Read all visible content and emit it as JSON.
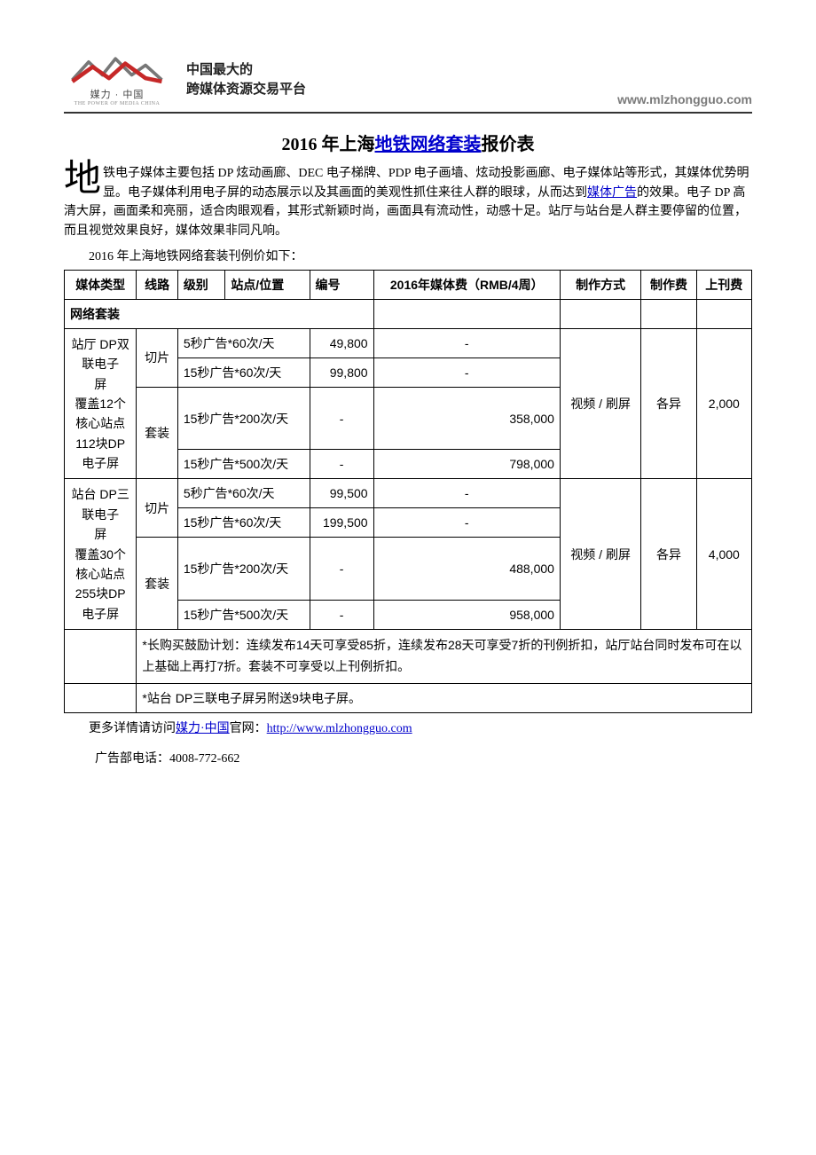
{
  "header": {
    "logo_name": "媒力 · 中国",
    "logo_sub": "THE POWER OF MEDIA  CHINA",
    "tagline_line1": "中国最大的",
    "tagline_line2": "跨媒体资源交易平台",
    "site_url": "www.mlzhongguo.com",
    "logo_colors": {
      "red": "#c62828",
      "gray": "#777777"
    }
  },
  "title": {
    "pre": "2016 年上海",
    "link": "地铁网络套装",
    "post": "报价表"
  },
  "intro": {
    "dropcap": "地",
    "body1": "铁电子媒体主要包括 DP 炫动画廊、DEC 电子梯牌、PDP 电子画墙、炫动投影画廊、电子媒体站等形式，其媒体优势明显。电子媒体利用电子屏的动态展示以及其画面的美观性抓住来往人群的眼球，从而达到",
    "ilink": "媒体广告",
    "body2": "的效果。电子 DP 高清大屏，画面柔和亮丽，适合肉眼观看，其形式新颖时尚，画面具有流动性，动感十足。站厅与站台是人群主要停留的位置，而且视觉效果良好，媒体效果非同凡响。",
    "caption": "2016 年上海地铁网络套装刊例价如下："
  },
  "table": {
    "headers": [
      "媒体类型",
      "线路",
      "级别",
      "站点/位置",
      "编号",
      "2016年媒体费（RMB/4周）",
      "制作方式",
      "制作费",
      "上刊费"
    ],
    "section_label": "网络套装",
    "groups": [
      {
        "media_type_lines": [
          "站厅 DP双联电子",
          "屏",
          "覆盖12个核心站点",
          "112块DP电子屏"
        ],
        "produce_method": "视频 / 刷屏",
        "produce_fee": "各异",
        "publish_fee": "2,000",
        "sub": [
          {
            "line": "切片",
            "rows": [
              {
                "pos": "5秒广告*60次/天",
                "num": "49,800",
                "fee": "-"
              },
              {
                "pos": "15秒广告*60次/天",
                "num": "99,800",
                "fee": "-"
              }
            ]
          },
          {
            "line": "套装",
            "rows": [
              {
                "pos": "15秒广告*200次/天",
                "num": "-",
                "fee": "358,000"
              },
              {
                "pos": "15秒广告*500次/天",
                "num": "-",
                "fee": "798,000"
              }
            ]
          }
        ]
      },
      {
        "media_type_lines": [
          "站台 DP三联电子",
          "屏",
          "覆盖30个核心站点",
          "255块DP电子屏"
        ],
        "produce_method": "视频 / 刷屏",
        "produce_fee": "各异",
        "publish_fee": "4,000",
        "sub": [
          {
            "line": "切片",
            "rows": [
              {
                "pos": "5秒广告*60次/天",
                "num": "99,500",
                "fee": "-"
              },
              {
                "pos": "15秒广告*60次/天",
                "num": "199,500",
                "fee": "-"
              }
            ]
          },
          {
            "line": "套装",
            "rows": [
              {
                "pos": "15秒广告*200次/天",
                "num": "-",
                "fee": "488,000"
              },
              {
                "pos": "15秒广告*500次/天",
                "num": "-",
                "fee": "958,000"
              }
            ]
          }
        ]
      }
    ],
    "note1": "*长购买鼓励计划：连续发布14天可享受85折，连续发布28天可享受7折的刊例折扣，站厅站台同时发布可在以上基础上再打7折。套装不可享受以上刊例折扣。",
    "note2": "*站台 DP三联电子屏另附送9块电子屏。"
  },
  "footer": {
    "more_pre": "更多详情请访问",
    "more_link1": "媒力·中国",
    "more_mid": "官网：",
    "more_url": "http://www.mlzhongguo.com",
    "phone": "广告部电话：4008-772-662"
  }
}
